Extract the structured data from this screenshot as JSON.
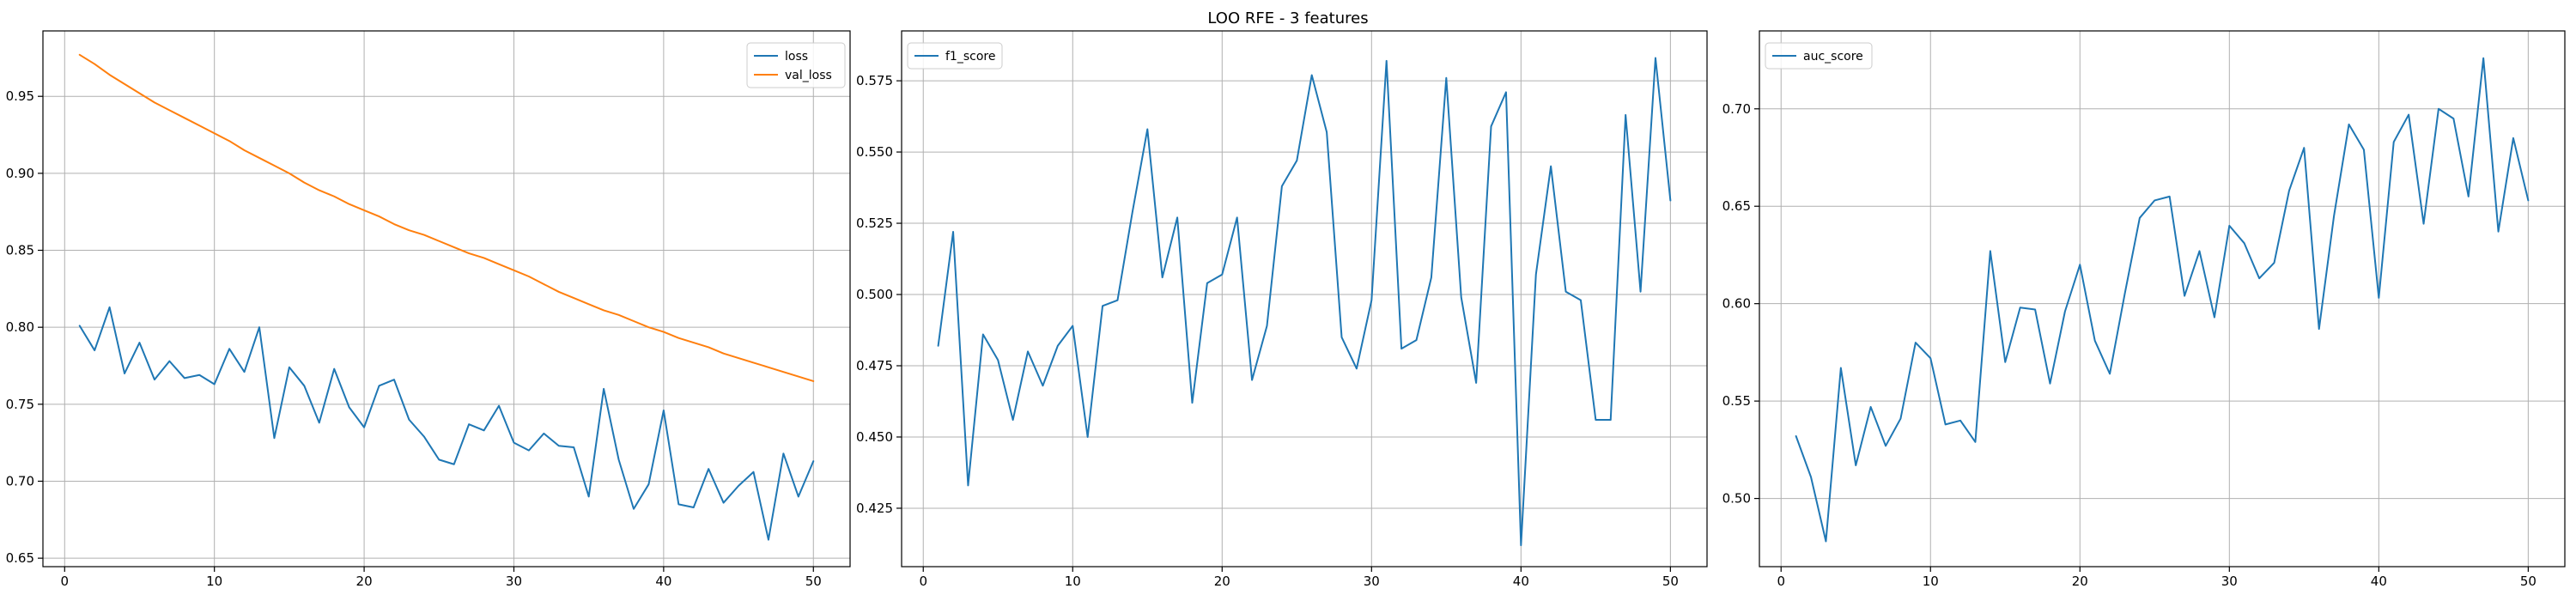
{
  "figure": {
    "title": "LOO RFE - 3 features"
  },
  "chart_data": [
    {
      "type": "line",
      "title": "",
      "xlabel": "",
      "ylabel": "",
      "grid": true,
      "legend_position": "upper-right",
      "xlim": [
        -1.45,
        52.45
      ],
      "ylim": [
        0.6445,
        0.9925
      ],
      "x_ticks": [
        0,
        10,
        20,
        30,
        40,
        50
      ],
      "y_ticks": [
        0.65,
        0.7,
        0.75,
        0.8,
        0.85,
        0.9,
        0.95
      ],
      "x_tick_labels": [
        "0",
        "10",
        "20",
        "30",
        "40",
        "50"
      ],
      "y_tick_labels": [
        "0.65",
        "0.70",
        "0.75",
        "0.80",
        "0.85",
        "0.90",
        "0.95"
      ],
      "x": [
        1,
        2,
        3,
        4,
        5,
        6,
        7,
        8,
        9,
        10,
        11,
        12,
        13,
        14,
        15,
        16,
        17,
        18,
        19,
        20,
        21,
        22,
        23,
        24,
        25,
        26,
        27,
        28,
        29,
        30,
        31,
        32,
        33,
        34,
        35,
        36,
        37,
        38,
        39,
        40,
        41,
        42,
        43,
        44,
        45,
        46,
        47,
        48,
        49,
        50
      ],
      "series": [
        {
          "name": "loss",
          "color": "#1f77b4",
          "values": [
            0.801,
            0.785,
            0.813,
            0.77,
            0.79,
            0.766,
            0.778,
            0.767,
            0.769,
            0.763,
            0.786,
            0.771,
            0.8,
            0.728,
            0.774,
            0.762,
            0.738,
            0.773,
            0.748,
            0.735,
            0.762,
            0.766,
            0.74,
            0.729,
            0.714,
            0.711,
            0.737,
            0.733,
            0.749,
            0.725,
            0.72,
            0.731,
            0.723,
            0.722,
            0.69,
            0.76,
            0.714,
            0.682,
            0.698,
            0.746,
            0.685,
            0.683,
            0.708,
            0.686,
            0.697,
            0.706,
            0.662,
            0.718,
            0.69,
            0.713
          ]
        },
        {
          "name": "val_loss",
          "color": "#ff7f0e",
          "values": [
            0.977,
            0.971,
            0.964,
            0.958,
            0.952,
            0.946,
            0.941,
            0.936,
            0.931,
            0.926,
            0.921,
            0.915,
            0.91,
            0.905,
            0.9,
            0.894,
            0.889,
            0.885,
            0.88,
            0.876,
            0.872,
            0.867,
            0.863,
            0.86,
            0.856,
            0.852,
            0.848,
            0.845,
            0.841,
            0.837,
            0.833,
            0.828,
            0.823,
            0.819,
            0.815,
            0.811,
            0.808,
            0.804,
            0.8,
            0.797,
            0.793,
            0.79,
            0.787,
            0.783,
            0.78,
            0.777,
            0.774,
            0.771,
            0.768,
            0.765
          ]
        }
      ]
    },
    {
      "type": "line",
      "title": "",
      "xlabel": "",
      "ylabel": "",
      "grid": true,
      "legend_position": "upper-left",
      "xlim": [
        -1.45,
        52.45
      ],
      "ylim": [
        0.4045,
        0.5925
      ],
      "x_ticks": [
        0,
        10,
        20,
        30,
        40,
        50
      ],
      "y_ticks": [
        0.425,
        0.45,
        0.475,
        0.5,
        0.525,
        0.55,
        0.575
      ],
      "x_tick_labels": [
        "0",
        "10",
        "20",
        "30",
        "40",
        "50"
      ],
      "y_tick_labels": [
        "0.425",
        "0.450",
        "0.475",
        "0.500",
        "0.525",
        "0.550",
        "0.575"
      ],
      "x": [
        1,
        2,
        3,
        4,
        5,
        6,
        7,
        8,
        9,
        10,
        11,
        12,
        13,
        14,
        15,
        16,
        17,
        18,
        19,
        20,
        21,
        22,
        23,
        24,
        25,
        26,
        27,
        28,
        29,
        30,
        31,
        32,
        33,
        34,
        35,
        36,
        37,
        38,
        39,
        40,
        41,
        42,
        43,
        44,
        45,
        46,
        47,
        48,
        49,
        50
      ],
      "series": [
        {
          "name": "f1_score",
          "color": "#1f77b4",
          "values": [
            0.482,
            0.522,
            0.433,
            0.486,
            0.477,
            0.456,
            0.48,
            0.468,
            0.482,
            0.489,
            0.45,
            0.496,
            0.498,
            0.529,
            0.558,
            0.506,
            0.527,
            0.462,
            0.504,
            0.507,
            0.527,
            0.47,
            0.489,
            0.538,
            0.547,
            0.577,
            0.557,
            0.485,
            0.474,
            0.498,
            0.582,
            0.481,
            0.484,
            0.506,
            0.576,
            0.499,
            0.469,
            0.559,
            0.571,
            0.412,
            0.507,
            0.545,
            0.501,
            0.498,
            0.456,
            0.456,
            0.563,
            0.501,
            0.583,
            0.533
          ]
        }
      ]
    },
    {
      "type": "line",
      "title": "",
      "xlabel": "",
      "ylabel": "",
      "grid": true,
      "legend_position": "upper-left",
      "xlim": [
        -1.45,
        52.45
      ],
      "ylim": [
        0.465,
        0.74
      ],
      "x_ticks": [
        0,
        10,
        20,
        30,
        40,
        50
      ],
      "y_ticks": [
        0.5,
        0.55,
        0.6,
        0.65,
        0.7
      ],
      "x_tick_labels": [
        "0",
        "10",
        "20",
        "30",
        "40",
        "50"
      ],
      "y_tick_labels": [
        "0.50",
        "0.55",
        "0.60",
        "0.65",
        "0.70"
      ],
      "x": [
        1,
        2,
        3,
        4,
        5,
        6,
        7,
        8,
        9,
        10,
        11,
        12,
        13,
        14,
        15,
        16,
        17,
        18,
        19,
        20,
        21,
        22,
        23,
        24,
        25,
        26,
        27,
        28,
        29,
        30,
        31,
        32,
        33,
        34,
        35,
        36,
        37,
        38,
        39,
        40,
        41,
        42,
        43,
        44,
        45,
        46,
        47,
        48,
        49,
        50
      ],
      "series": [
        {
          "name": "auc_score",
          "color": "#1f77b4",
          "values": [
            0.532,
            0.511,
            0.478,
            0.567,
            0.517,
            0.547,
            0.527,
            0.541,
            0.58,
            0.572,
            0.538,
            0.54,
            0.529,
            0.627,
            0.57,
            0.598,
            0.597,
            0.559,
            0.596,
            0.62,
            0.581,
            0.564,
            0.605,
            0.644,
            0.653,
            0.655,
            0.604,
            0.627,
            0.593,
            0.64,
            0.631,
            0.613,
            0.621,
            0.658,
            0.68,
            0.587,
            0.645,
            0.692,
            0.679,
            0.603,
            0.683,
            0.697,
            0.641,
            0.7,
            0.695,
            0.655,
            0.726,
            0.637,
            0.685,
            0.653
          ]
        }
      ]
    }
  ]
}
